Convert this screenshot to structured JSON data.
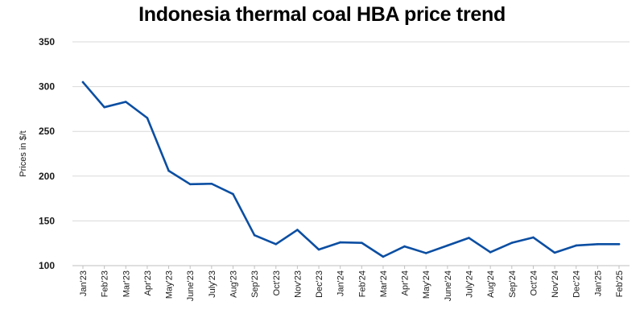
{
  "chart_data": {
    "type": "line",
    "title": "Indonesia thermal coal HBA price trend",
    "xlabel": "",
    "ylabel": "Prices in $/t",
    "ylim": [
      100,
      350
    ],
    "yticks": [
      100,
      150,
      200,
      250,
      300,
      350
    ],
    "grid": true,
    "legend": "none",
    "categories": [
      "Jan'23",
      "Feb'23",
      "Mar'23",
      "Apr'23",
      "May'23",
      "June'23",
      "July'23",
      "Aug'23",
      "Sep'23",
      "Oct'23",
      "Nov'23",
      "Dec'23",
      "Jan'24",
      "Feb'24",
      "Mar'24",
      "Apr'24",
      "May'24",
      "June'24",
      "July'24",
      "Aug'24",
      "Sep'24",
      "Oct'24",
      "Nov'24",
      "Dec'24",
      "Jan'25",
      "Feb'25"
    ],
    "series": [
      {
        "color": "#0b4ea2",
        "values": [
          305,
          277,
          283,
          265,
          206,
          191,
          191.5,
          180,
          134,
          124,
          140,
          118,
          126,
          125.5,
          110,
          121.5,
          114,
          122.5,
          131,
          115,
          125.5,
          131.5,
          114.5,
          122.5,
          124,
          124
        ]
      }
    ]
  }
}
